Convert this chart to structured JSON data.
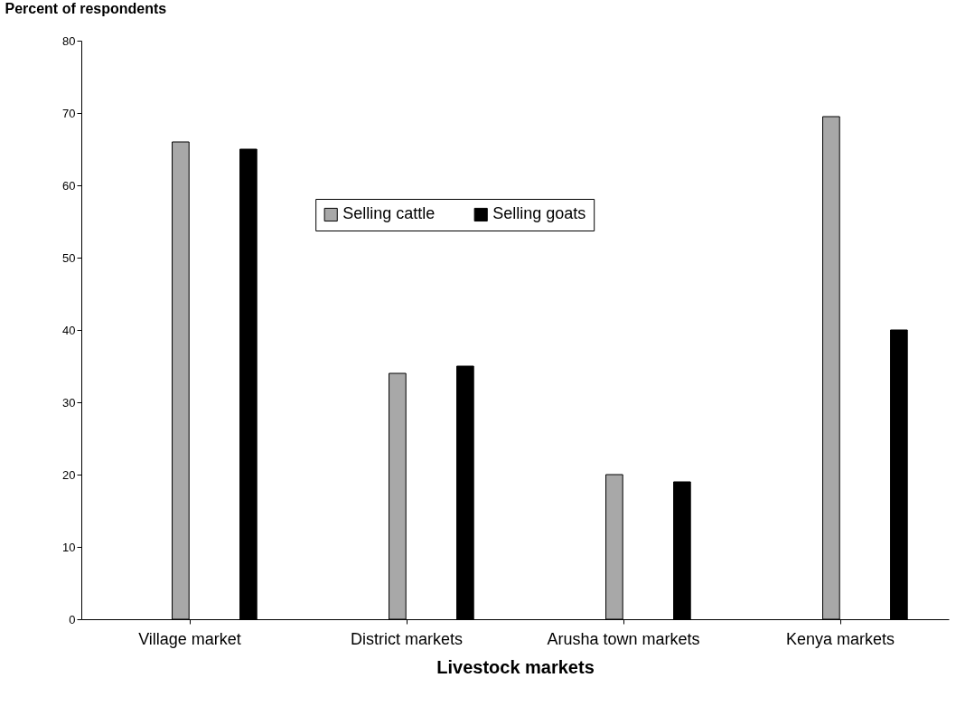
{
  "chart_data": {
    "type": "bar",
    "ylabel": "Percent of respondents",
    "xlabel": "Livestock markets",
    "categories": [
      "Village market",
      "District markets",
      "Arusha town markets",
      "Kenya markets"
    ],
    "series": [
      {
        "name": "Selling cattle",
        "color": "#a8a8a8",
        "values": [
          66,
          34,
          20,
          69.5
        ]
      },
      {
        "name": "Selling goats",
        "color": "#000000",
        "values": [
          65,
          35,
          19,
          40
        ]
      }
    ],
    "ylim": [
      0,
      80
    ],
    "yticks": [
      0,
      10,
      20,
      30,
      40,
      50,
      60,
      70,
      80
    ],
    "grid": false,
    "legend": "top"
  }
}
